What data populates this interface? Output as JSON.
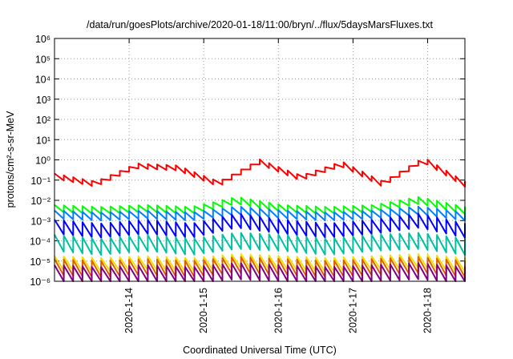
{
  "chart_data": {
    "type": "line",
    "title": "/data/run/goesPlots/archive/2020-01-18/11:00/bryn/../flux/5daysMarsFluxes.txt",
    "xlabel": "Coordinated Universal Time (UTC)",
    "ylabel": "protons/cm²-s-sr-MeV",
    "yscale": "log",
    "ylim": [
      1e-06,
      1000000.0
    ],
    "xlim": [
      "2020-01-13 00:00",
      "2020-01-18 12:00"
    ],
    "xticks": [
      "2020-1-14",
      "2020-1-15",
      "2020-1-16",
      "2020-1-17",
      "2020-1-18"
    ],
    "yticks": [
      "10⁻⁶",
      "10⁻⁵",
      "10⁻⁴",
      "10⁻³",
      "10⁻²",
      "10⁻¹",
      "10⁰",
      "10¹",
      "10²",
      "10³",
      "10⁴",
      "10⁵",
      "10⁶"
    ],
    "grid": true,
    "sawtooth_period_hours": 3,
    "series": [
      {
        "color": "#ff0000",
        "log_baseline": [
          -0.8,
          -1.2,
          -0.3,
          -0.4,
          -1.2,
          -0.1,
          -0.9,
          -0.2,
          -1.2,
          0.0,
          -1.2
        ],
        "log_amplitude": 0.25
      },
      {
        "color": "#00ff00",
        "log_baseline": [
          -2.4,
          -2.5,
          -2.4,
          -2.5,
          -2.0,
          -2.4,
          -2.5,
          -2.4,
          -2.0,
          -2.5
        ],
        "log_amplitude": 0.35
      },
      {
        "color": "#0080ff",
        "log_baseline": [
          -2.7,
          -2.8,
          -2.7,
          -2.8,
          -2.5,
          -2.7,
          -2.8,
          -2.7,
          -2.5,
          -2.8
        ],
        "log_amplitude": 0.4
      },
      {
        "color": "#0000ff",
        "log_baseline": [
          -3.3,
          -3.5,
          -3.3,
          -3.5,
          -3.0,
          -3.3,
          -3.5,
          -3.3,
          -3.0,
          -3.5
        ],
        "log_amplitude": 0.7
      },
      {
        "color": "#00c0a0",
        "log_baseline": [
          -4.1,
          -4.3,
          -4.1,
          -4.3,
          -4.0,
          -4.1,
          -4.3,
          -4.1,
          -4.0,
          -4.3
        ],
        "log_amplitude": 0.8
      },
      {
        "color": "#f0e000",
        "log_baseline": [
          -5.1,
          -5.2,
          -5.1,
          -5.2,
          -5.0,
          -5.1,
          -5.2,
          -5.1,
          -5.0,
          -5.2
        ],
        "log_amplitude": 0.7
      },
      {
        "color": "#e06000",
        "log_baseline": [
          -5.3,
          -5.4,
          -5.3,
          -5.4,
          -5.2,
          -5.3,
          -5.4,
          -5.3,
          -5.2,
          -5.4
        ],
        "log_amplitude": 0.8
      },
      {
        "color": "#800080",
        "log_baseline": [
          -5.6,
          -5.7,
          -5.6,
          -5.7,
          -5.5,
          -5.6,
          -5.7,
          -5.6,
          -5.5,
          -5.7
        ],
        "log_amplitude": 0.8
      }
    ]
  }
}
